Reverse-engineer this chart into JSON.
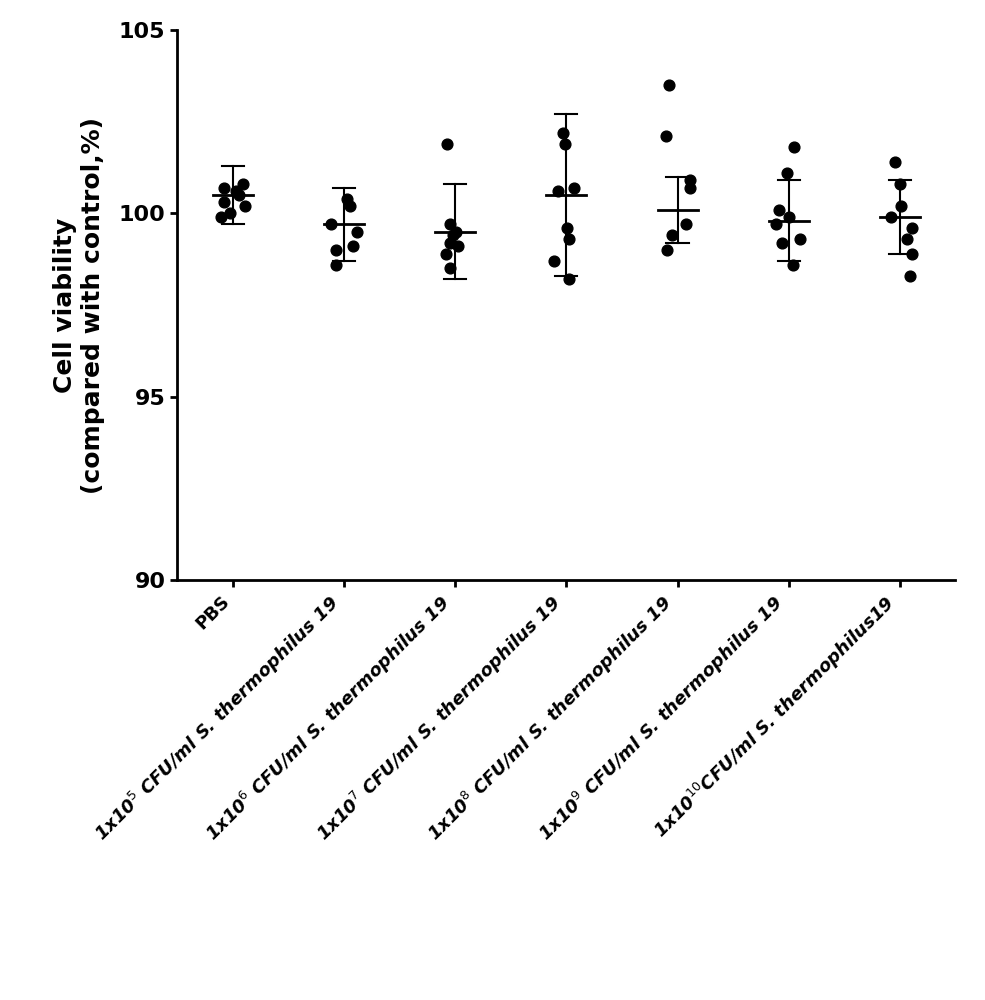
{
  "categories": [
    "PBS",
    "1x10$^5$ CFU/ml S. thermophilus 19",
    "1x10$^6$ CFU/ml S. thermophilus 19",
    "1x10$^7$ CFU/ml S. thermophilus 19",
    "1x10$^8$ CFU/ml S. thermophilus 19",
    "1x10$^9$ CFU/ml S. thermophilus 19",
    "1x10$^{10}$CFU/ml S. thermophilus19"
  ],
  "means": [
    100.5,
    99.7,
    99.5,
    100.5,
    100.1,
    99.8,
    99.9
  ],
  "errors": [
    0.8,
    1.0,
    1.3,
    2.2,
    0.9,
    1.1,
    1.0
  ],
  "dot_data": [
    [
      100.0,
      100.2,
      100.5,
      100.6,
      100.7,
      100.3,
      99.9,
      100.8
    ],
    [
      100.4,
      100.2,
      99.7,
      99.5,
      99.1,
      99.0,
      98.6
    ],
    [
      101.9,
      99.7,
      99.5,
      99.4,
      99.2,
      99.1,
      98.9,
      98.5
    ],
    [
      102.2,
      101.9,
      100.7,
      100.6,
      99.6,
      99.3,
      98.7,
      98.2
    ],
    [
      103.5,
      102.1,
      100.9,
      100.7,
      99.7,
      99.4,
      99.0
    ],
    [
      101.8,
      101.1,
      100.1,
      99.9,
      99.7,
      99.3,
      99.2,
      98.6
    ],
    [
      101.4,
      100.8,
      100.2,
      99.9,
      99.6,
      99.3,
      98.9,
      98.3
    ]
  ],
  "ylim": [
    90,
    105
  ],
  "yticks": [
    90,
    95,
    100,
    105
  ],
  "ylabel": "Cell viability\n(compared with control,%)",
  "background_color": "#ffffff",
  "dot_color": "#000000",
  "line_color": "#000000",
  "dot_size": 60,
  "mean_linewidth": 2.0,
  "error_linewidth": 1.5,
  "tick_fontsize": 16,
  "label_fontsize": 18
}
